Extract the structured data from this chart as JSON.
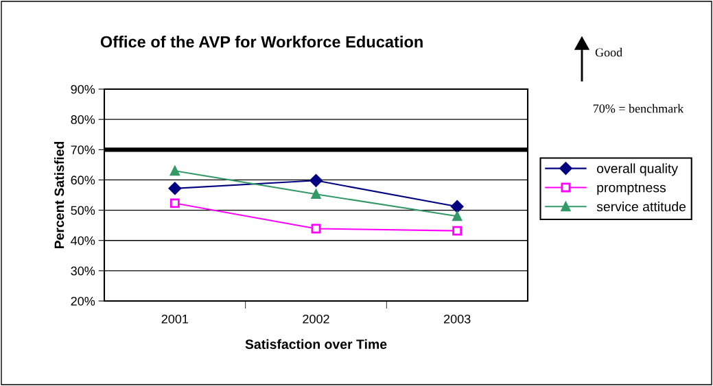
{
  "chart_data": {
    "type": "line",
    "title": "Office of the AVP for Workforce Education",
    "xlabel": "Satisfaction over Time",
    "ylabel": "Percent Satisfied",
    "categories": [
      "2001",
      "2002",
      "2003"
    ],
    "series": [
      {
        "name": "overall quality",
        "color": "#000080",
        "marker": "diamond",
        "values": [
          57.2,
          59.8,
          51.2
        ]
      },
      {
        "name": "promptness",
        "color": "#ff00ff",
        "marker": "square",
        "values": [
          52.3,
          43.9,
          43.2
        ]
      },
      {
        "name": "service attitude",
        "color": "#339966",
        "marker": "triangle",
        "values": [
          63,
          55.3,
          48
        ]
      }
    ],
    "ylim": [
      20,
      90
    ],
    "yticks": [
      {
        "value": 20,
        "label": "20%"
      },
      {
        "value": 30,
        "label": "30%"
      },
      {
        "value": 40,
        "label": "40%"
      },
      {
        "value": 50,
        "label": "50%"
      },
      {
        "value": 60,
        "label": "60%"
      },
      {
        "value": 70,
        "label": "70%"
      },
      {
        "value": 80,
        "label": "80%"
      },
      {
        "value": 90,
        "label": "90%"
      }
    ],
    "ref_lines": [
      {
        "axis": "y",
        "value": 70,
        "color": "#000000",
        "line_style": "solid"
      }
    ],
    "annotations": [
      "Good",
      "70% = benchmark"
    ],
    "grid": "y",
    "legend": "right",
    "line_style": "solid"
  }
}
